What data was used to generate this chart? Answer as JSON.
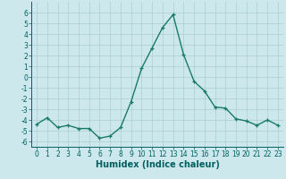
{
  "x": [
    0,
    1,
    2,
    3,
    4,
    5,
    6,
    7,
    8,
    9,
    10,
    11,
    12,
    13,
    14,
    15,
    16,
    17,
    18,
    19,
    20,
    21,
    22,
    23
  ],
  "y": [
    -4.4,
    -3.8,
    -4.7,
    -4.5,
    -4.8,
    -4.8,
    -5.7,
    -5.5,
    -4.7,
    -2.3,
    0.8,
    2.7,
    4.6,
    5.8,
    2.1,
    -0.4,
    -1.3,
    -2.8,
    -2.9,
    -3.9,
    -4.1,
    -4.5,
    -4.0,
    -4.5
  ],
  "line_color": "#1a7a6a",
  "marker": "+",
  "marker_size": 3,
  "linewidth": 1.0,
  "xlabel": "Humidex (Indice chaleur)",
  "xlabel_fontsize": 7,
  "xlabel_color": "#006060",
  "ylim": [
    -6.5,
    7.0
  ],
  "xlim": [
    -0.5,
    23.5
  ],
  "yticks": [
    -6,
    -5,
    -4,
    -3,
    -2,
    -1,
    0,
    1,
    2,
    3,
    4,
    5,
    6
  ],
  "xticks": [
    0,
    1,
    2,
    3,
    4,
    5,
    6,
    7,
    8,
    9,
    10,
    11,
    12,
    13,
    14,
    15,
    16,
    17,
    18,
    19,
    20,
    21,
    22,
    23
  ],
  "tick_fontsize": 5.5,
  "tick_color": "#006060",
  "bg_color": "#cce8ec",
  "grid_color": "#aacfd4",
  "grid_linewidth": 0.5,
  "spine_color": "#006060"
}
